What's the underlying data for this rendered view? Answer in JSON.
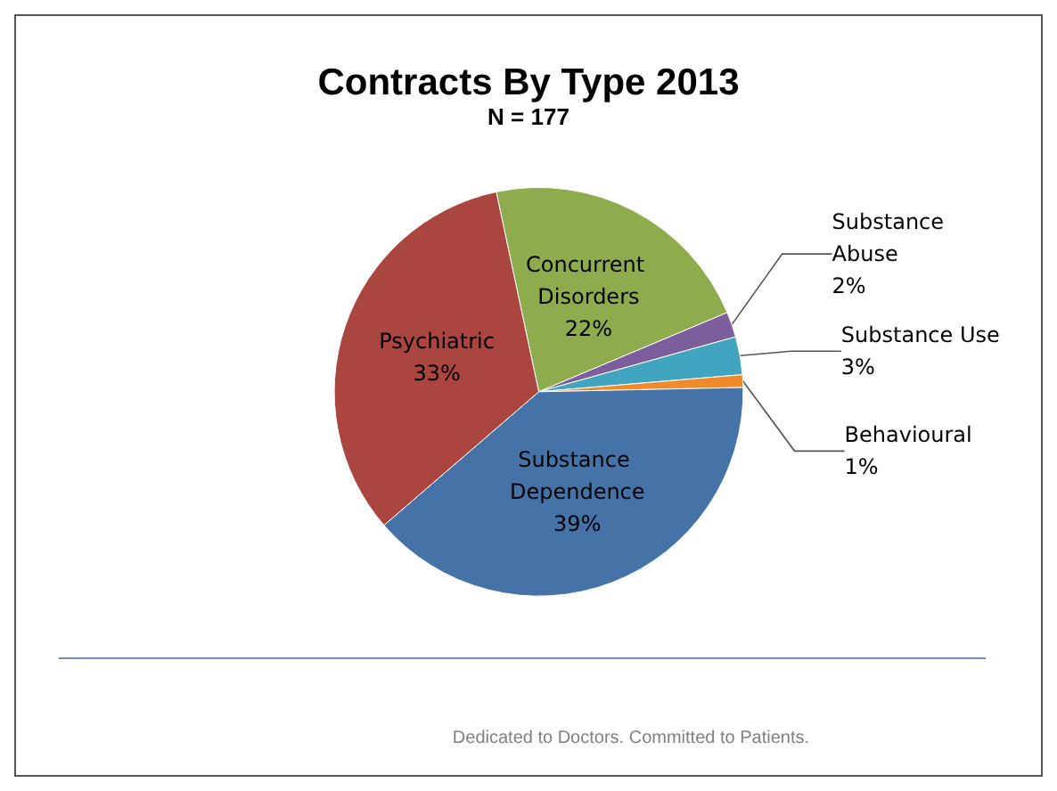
{
  "chart_data": {
    "type": "pie",
    "title": "Contracts By Type 2013",
    "subtitle": "N = 177",
    "categories": [
      "Concurrent Disorders",
      "Substance Abuse",
      "Substance Use",
      "Behavioural",
      "Substance Dependence",
      "Psychiatric"
    ],
    "values": [
      22,
      2,
      3,
      1,
      39,
      33
    ],
    "colors": [
      "#8eac4e",
      "#7c5e9c",
      "#41a5c0",
      "#f08b2d",
      "#4573a8",
      "#aa4540"
    ],
    "value_labels": [
      "22%",
      "2%",
      "3%",
      "1%",
      "39%",
      "33%"
    ],
    "legend": false,
    "annotations": [
      "Dedicated to Doctors. Committed to Patients."
    ]
  }
}
